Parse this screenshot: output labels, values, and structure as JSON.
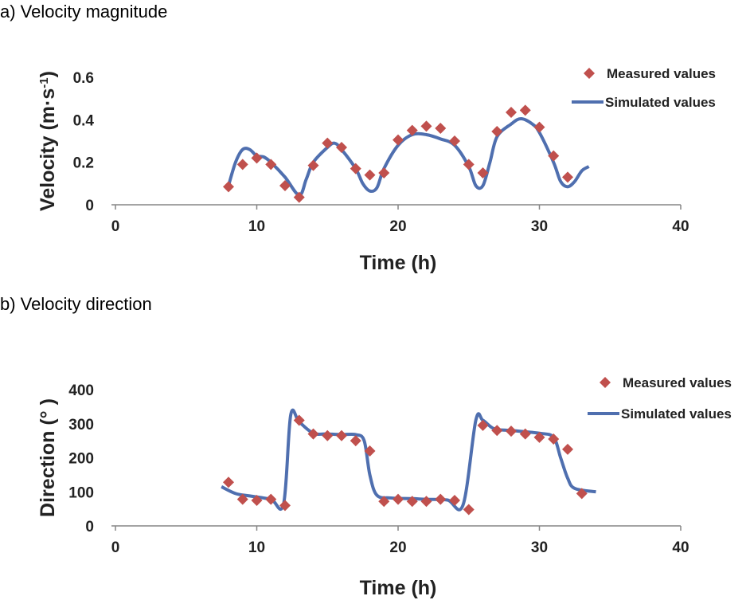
{
  "chart_data": [
    {
      "type": "scatter+line",
      "title": "a) Velocity magnitude",
      "xlabel": "Time (h)",
      "ylabel": "Velocity (m·s-1)",
      "ylabel_main": "Velocity (m·s",
      "ylabel_sup": "-1",
      "ylabel_end": ")",
      "xlim": [
        0,
        40
      ],
      "ylim": [
        0,
        0.6
      ],
      "xticks": [
        "0",
        "10",
        "20",
        "30",
        "40"
      ],
      "yticks": [
        "0",
        "0.2",
        "0.4",
        "0.6"
      ],
      "legend": "top-right",
      "grid": false,
      "series": [
        {
          "name": "Measured values",
          "kind": "scatter",
          "color": "#C0504D",
          "x": [
            8,
            9,
            10,
            11,
            12,
            13,
            14,
            15,
            16,
            17,
            18,
            19,
            20,
            21,
            22,
            23,
            24,
            25,
            26,
            27,
            28,
            29,
            30,
            31,
            32
          ],
          "y": [
            0.085,
            0.19,
            0.22,
            0.19,
            0.09,
            0.035,
            0.185,
            0.29,
            0.27,
            0.17,
            0.14,
            0.15,
            0.305,
            0.35,
            0.37,
            0.36,
            0.3,
            0.19,
            0.15,
            0.345,
            0.435,
            0.445,
            0.365,
            0.23,
            0.13
          ]
        },
        {
          "name": "Simulated values",
          "kind": "line",
          "color": "#4F6FAF",
          "x": [
            8,
            8.5,
            9,
            9.5,
            10,
            10.5,
            11,
            12,
            13,
            13.5,
            14,
            15,
            15.5,
            16,
            17,
            17.5,
            18,
            18.5,
            19,
            20,
            21,
            22,
            23,
            24,
            25,
            25.5,
            26,
            26.5,
            27,
            28,
            28.7,
            29.5,
            30,
            31,
            31.5,
            32,
            32.5,
            33,
            33.5
          ],
          "y": [
            0.09,
            0.2,
            0.26,
            0.26,
            0.23,
            0.225,
            0.2,
            0.13,
            0.045,
            0.12,
            0.2,
            0.27,
            0.29,
            0.26,
            0.17,
            0.1,
            0.065,
            0.08,
            0.17,
            0.28,
            0.33,
            0.33,
            0.31,
            0.28,
            0.18,
            0.09,
            0.09,
            0.2,
            0.32,
            0.38,
            0.405,
            0.38,
            0.34,
            0.2,
            0.11,
            0.085,
            0.11,
            0.16,
            0.18
          ]
        }
      ]
    },
    {
      "type": "scatter+line",
      "title": "b) Velocity direction",
      "xlabel": "Time (h)",
      "ylabel": "Direction (°)",
      "ylabel_main": "Direction (°  )",
      "xlim": [
        0,
        40
      ],
      "ylim": [
        0,
        400
      ],
      "xticks": [
        "0",
        "10",
        "20",
        "30",
        "40"
      ],
      "yticks": [
        "0",
        "100",
        "200",
        "300",
        "400"
      ],
      "legend": "top-right",
      "grid": false,
      "series": [
        {
          "name": "Measured values",
          "kind": "scatter",
          "color": "#C0504D",
          "x": [
            8,
            9,
            10,
            11,
            12,
            13,
            14,
            15,
            16,
            17,
            18,
            19,
            20,
            21,
            22,
            23,
            24,
            25,
            26,
            27,
            28,
            29,
            30,
            31,
            32,
            33
          ],
          "y": [
            128,
            78,
            75,
            78,
            60,
            310,
            270,
            265,
            265,
            250,
            220,
            72,
            78,
            72,
            72,
            78,
            75,
            48,
            295,
            280,
            278,
            270,
            260,
            255,
            225,
            95
          ]
        },
        {
          "name": "Simulated values",
          "kind": "line",
          "color": "#4F6FAF",
          "x": [
            7.5,
            8.5,
            9.5,
            11,
            11.9,
            12.4,
            13,
            14,
            15,
            16,
            17,
            17.6,
            18,
            18.5,
            19.5,
            21,
            22,
            23.5,
            24.6,
            25.5,
            26,
            26.8,
            28,
            30,
            31,
            31.5,
            32,
            32.5,
            34
          ],
          "y": [
            115,
            95,
            88,
            78,
            65,
            325,
            305,
            272,
            270,
            268,
            268,
            250,
            150,
            90,
            82,
            80,
            78,
            76,
            62,
            310,
            310,
            285,
            280,
            272,
            260,
            200,
            140,
            110,
            100
          ]
        }
      ]
    }
  ]
}
